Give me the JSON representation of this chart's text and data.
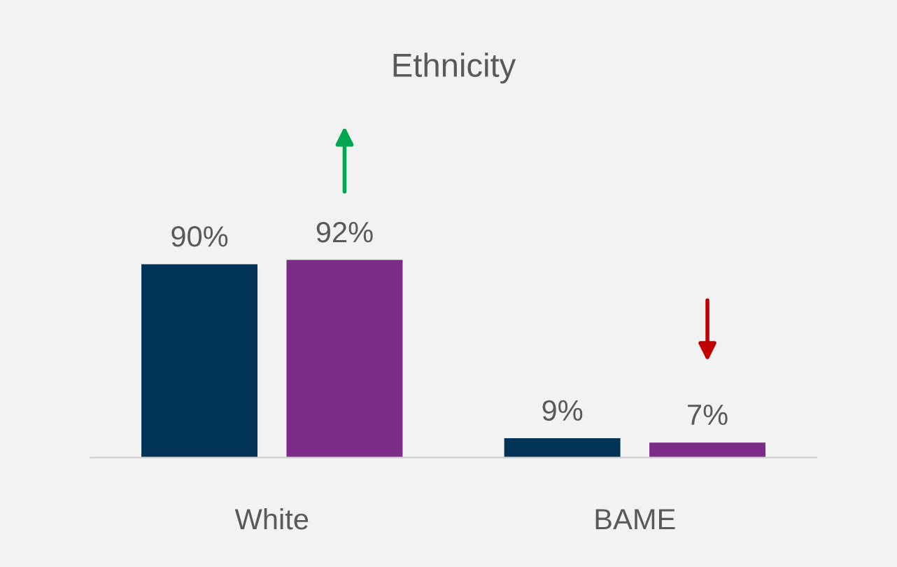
{
  "chart_data": {
    "type": "bar",
    "title": "Ethnicity",
    "categories": [
      "White",
      "BAME"
    ],
    "series": [
      {
        "color": "#003356",
        "values": [
          90,
          9
        ],
        "value_labels": [
          "90%",
          "9%"
        ]
      },
      {
        "color": "#7b2c87",
        "values": [
          92,
          7
        ],
        "value_labels": [
          "92%",
          "7%"
        ]
      }
    ],
    "grid": false,
    "legend": false
  }
}
